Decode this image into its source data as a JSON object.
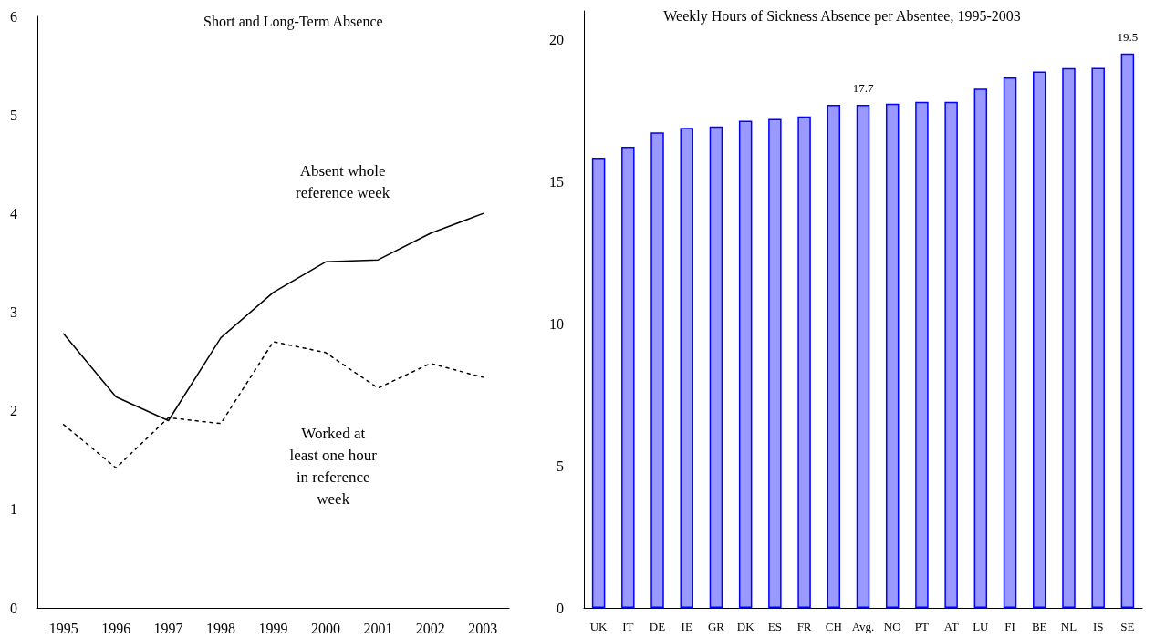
{
  "chart_data": [
    {
      "type": "line",
      "title": "Short and Long-Term Absence",
      "categories": [
        "1995",
        "1996",
        "1997",
        "1998",
        "1999",
        "2000",
        "2001",
        "2002",
        "2003"
      ],
      "series": [
        {
          "color": "#000000",
          "line_style": "solid",
          "values": [
            2.78,
            2.14,
            1.9,
            2.74,
            3.2,
            3.51,
            3.53,
            3.8,
            4.0
          ]
        },
        {
          "color": "#000000",
          "line_style": "dotted",
          "values": [
            1.86,
            1.42,
            1.93,
            1.87,
            2.7,
            2.59,
            2.23,
            2.48,
            2.34
          ]
        }
      ],
      "annotations": [
        "Absent whole\nreference week",
        "Worked at\nleast one hour\nin reference\nweek"
      ],
      "ylim": [
        0,
        6
      ],
      "yticks": [
        0,
        1,
        2,
        3,
        4,
        5,
        6
      ],
      "grid": false,
      "marker": "none"
    },
    {
      "type": "bar",
      "title": "Weekly Hours of Sickness Absence per Absentee, 1995-2003",
      "categories": [
        "UK",
        "IT",
        "DE",
        "IE",
        "GR",
        "DK",
        "ES",
        "FR",
        "CH",
        "Avg.",
        "NO",
        "PT",
        "AT",
        "LU",
        "FI",
        "BE",
        "NL",
        "IS",
        "SE"
      ],
      "values": [
        15.84,
        16.22,
        16.73,
        16.89,
        16.94,
        17.14,
        17.2,
        17.29,
        17.7,
        17.7,
        17.74,
        17.8,
        17.8,
        18.27,
        18.66,
        18.87,
        18.99,
        19.0,
        19.5
      ],
      "value_labels": [
        null,
        null,
        null,
        null,
        null,
        null,
        null,
        null,
        null,
        "17.7",
        null,
        null,
        null,
        null,
        null,
        null,
        null,
        null,
        "19.5"
      ],
      "color": "#9999ff",
      "ylim": [
        0,
        21
      ],
      "yticks": [
        0,
        5,
        10,
        15,
        20
      ],
      "grid": false
    }
  ]
}
